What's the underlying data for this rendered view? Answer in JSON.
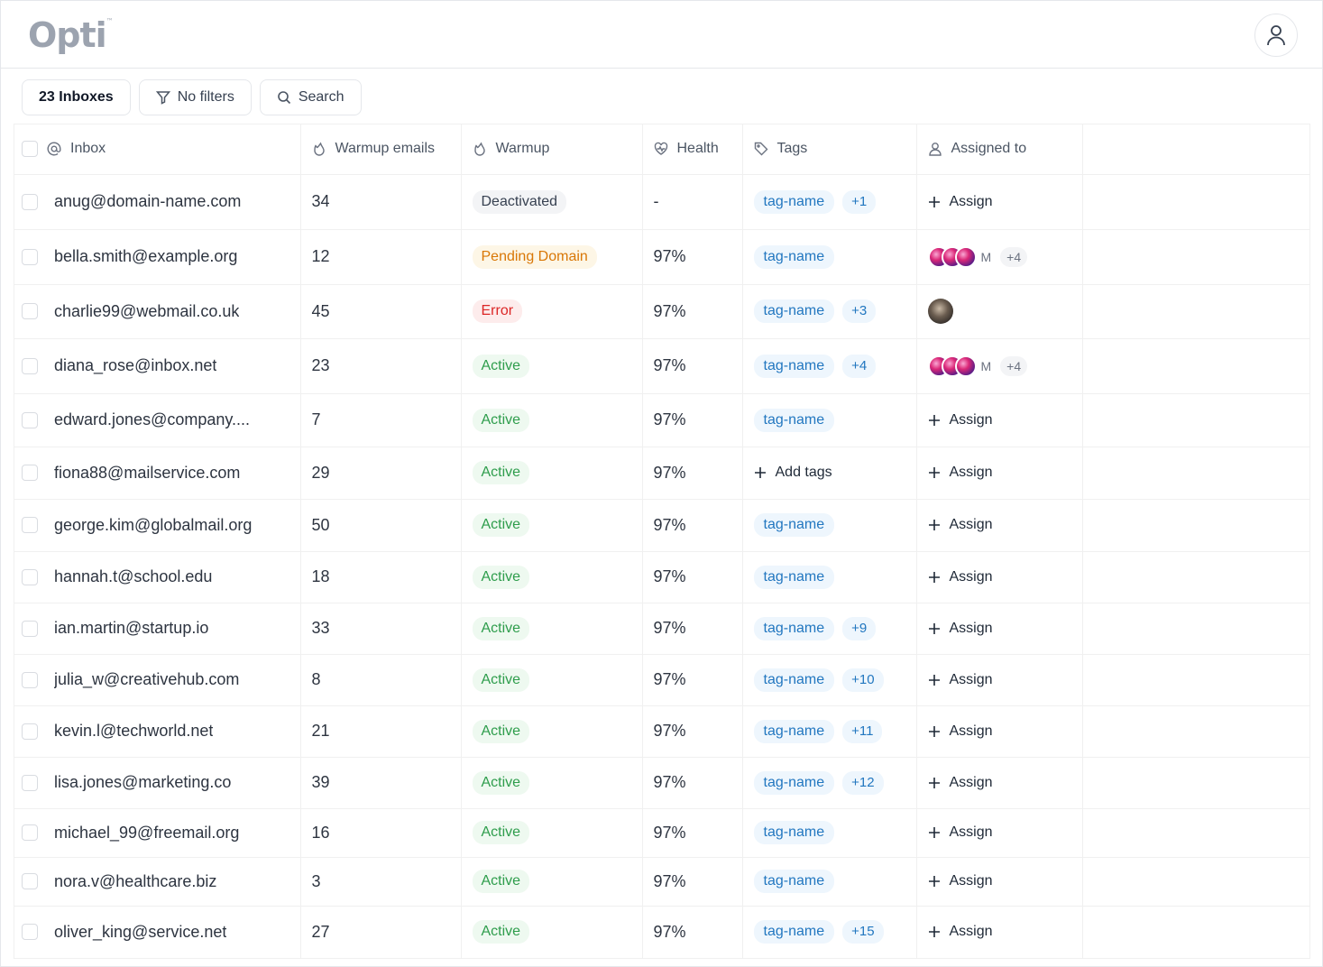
{
  "app": {
    "logo": "Opti",
    "logo_mark": "™"
  },
  "toolbar": {
    "inboxes_label": "23 Inboxes",
    "filters_label": "No filters",
    "search_label": "Search"
  },
  "table": {
    "headers": {
      "inbox": "Inbox",
      "warmup_emails": "Warmup emails",
      "warmup": "Warmup",
      "health": "Health",
      "tags": "Tags",
      "assigned": "Assigned to"
    },
    "assign_label": "Assign",
    "add_tags_label": "Add tags",
    "rows": [
      {
        "email": "anug@domain-name.com",
        "warmup_emails": "34",
        "status": "Deactivated",
        "status_kind": "deact",
        "health": "-",
        "tag": "tag-name",
        "tag_more": "+1",
        "assigned": {
          "type": "assign"
        }
      },
      {
        "email": "bella.smith@example.org",
        "warmup_emails": "12",
        "status": "Pending Domain",
        "status_kind": "pending",
        "health": "97%",
        "tag": "tag-name",
        "tag_more": "",
        "assigned": {
          "type": "avatars",
          "initial": "M",
          "more": "+4"
        }
      },
      {
        "email": "charlie99@webmail.co.uk",
        "warmup_emails": "45",
        "status": "Error",
        "status_kind": "error",
        "health": "97%",
        "tag": "tag-name",
        "tag_more": "+3",
        "assigned": {
          "type": "photo"
        }
      },
      {
        "email": "diana_rose@inbox.net",
        "warmup_emails": "23",
        "status": "Active",
        "status_kind": "active",
        "health": "97%",
        "tag": "tag-name",
        "tag_more": "+4",
        "assigned": {
          "type": "avatars",
          "initial": "M",
          "more": "+4"
        }
      },
      {
        "email": "edward.jones@company....",
        "warmup_emails": "7",
        "status": "Active",
        "status_kind": "active",
        "health": "97%",
        "tag": "tag-name",
        "tag_more": "",
        "assigned": {
          "type": "assign"
        }
      },
      {
        "email": "fiona88@mailservice.com",
        "warmup_emails": "29",
        "status": "Active",
        "status_kind": "active",
        "health": "97%",
        "tag": "",
        "tag_more": "",
        "assigned": {
          "type": "assign"
        }
      },
      {
        "email": "george.kim@globalmail.org",
        "warmup_emails": "50",
        "status": "Active",
        "status_kind": "active",
        "health": "97%",
        "tag": "tag-name",
        "tag_more": "",
        "assigned": {
          "type": "assign"
        }
      },
      {
        "email": "hannah.t@school.edu",
        "warmup_emails": "18",
        "status": "Active",
        "status_kind": "active",
        "health": "97%",
        "tag": "tag-name",
        "tag_more": "",
        "assigned": {
          "type": "assign"
        }
      },
      {
        "email": "ian.martin@startup.io",
        "warmup_emails": "33",
        "status": "Active",
        "status_kind": "active",
        "health": "97%",
        "tag": "tag-name",
        "tag_more": "+9",
        "assigned": {
          "type": "assign"
        }
      },
      {
        "email": "julia_w@creativehub.com",
        "warmup_emails": "8",
        "status": "Active",
        "status_kind": "active",
        "health": "97%",
        "tag": "tag-name",
        "tag_more": "+10",
        "assigned": {
          "type": "assign"
        }
      },
      {
        "email": "kevin.l@techworld.net",
        "warmup_emails": "21",
        "status": "Active",
        "status_kind": "active",
        "health": "97%",
        "tag": "tag-name",
        "tag_more": "+11",
        "assigned": {
          "type": "assign"
        }
      },
      {
        "email": "lisa.jones@marketing.co",
        "warmup_emails": "39",
        "status": "Active",
        "status_kind": "active",
        "health": "97%",
        "tag": "tag-name",
        "tag_more": "+12",
        "assigned": {
          "type": "assign"
        }
      },
      {
        "email": "michael_99@freemail.org",
        "warmup_emails": "16",
        "status": "Active",
        "status_kind": "active",
        "health": "97%",
        "tag": "tag-name",
        "tag_more": "",
        "assigned": {
          "type": "assign"
        }
      },
      {
        "email": "nora.v@healthcare.biz",
        "warmup_emails": "3",
        "status": "Active",
        "status_kind": "active",
        "health": "97%",
        "tag": "tag-name",
        "tag_more": "",
        "assigned": {
          "type": "assign"
        }
      },
      {
        "email": "oliver_king@service.net",
        "warmup_emails": "27",
        "status": "Active",
        "status_kind": "active",
        "health": "97%",
        "tag": "tag-name",
        "tag_more": "+15",
        "assigned": {
          "type": "assign"
        }
      }
    ]
  }
}
